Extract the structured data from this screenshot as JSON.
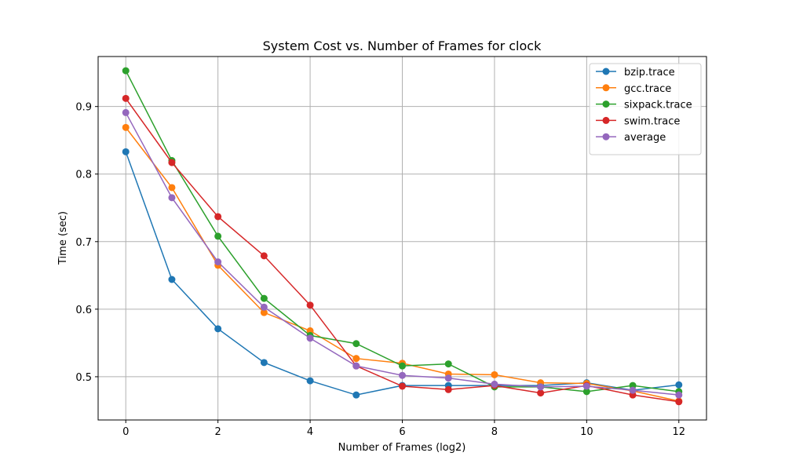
{
  "chart_data": {
    "type": "line",
    "title": "System Cost vs. Number of Frames for clock",
    "xlabel": "Number of Frames (log2)",
    "ylabel": "Time (sec)",
    "xlim": [
      -0.6,
      12.6
    ],
    "ylim": [
      0.436,
      0.974
    ],
    "xticks": [
      0,
      2,
      4,
      6,
      8,
      10,
      12
    ],
    "yticks": [
      0.5,
      0.6,
      0.7,
      0.8,
      0.9
    ],
    "ytick_labels": [
      "0.5",
      "0.6",
      "0.7",
      "0.8",
      "0.9"
    ],
    "grid": true,
    "legend_position": "top-right",
    "x": [
      0,
      1,
      2,
      3,
      4,
      5,
      6,
      7,
      8,
      9,
      10,
      11,
      12
    ],
    "series": [
      {
        "name": "bzip.trace",
        "color": "#1f77b4",
        "values": [
          0.833,
          0.644,
          0.571,
          0.521,
          0.494,
          0.473,
          0.487,
          0.487,
          0.487,
          0.487,
          0.491,
          0.48,
          0.488
        ]
      },
      {
        "name": "gcc.trace",
        "color": "#ff7f0e",
        "values": [
          0.869,
          0.78,
          0.665,
          0.595,
          0.568,
          0.527,
          0.52,
          0.504,
          0.503,
          0.491,
          0.49,
          0.479,
          0.464
        ]
      },
      {
        "name": "sixpack.trace",
        "color": "#2ca02c",
        "values": [
          0.953,
          0.82,
          0.708,
          0.616,
          0.561,
          0.549,
          0.516,
          0.519,
          0.485,
          0.485,
          0.478,
          0.487,
          0.478
        ]
      },
      {
        "name": "swim.trace",
        "color": "#d62728",
        "values": [
          0.912,
          0.817,
          0.737,
          0.679,
          0.606,
          0.516,
          0.486,
          0.481,
          0.487,
          0.476,
          0.487,
          0.473,
          0.463
        ]
      },
      {
        "name": "average",
        "color": "#9467bd",
        "values": [
          0.891,
          0.765,
          0.67,
          0.603,
          0.557,
          0.516,
          0.502,
          0.498,
          0.489,
          0.485,
          0.486,
          0.48,
          0.473
        ]
      }
    ]
  }
}
